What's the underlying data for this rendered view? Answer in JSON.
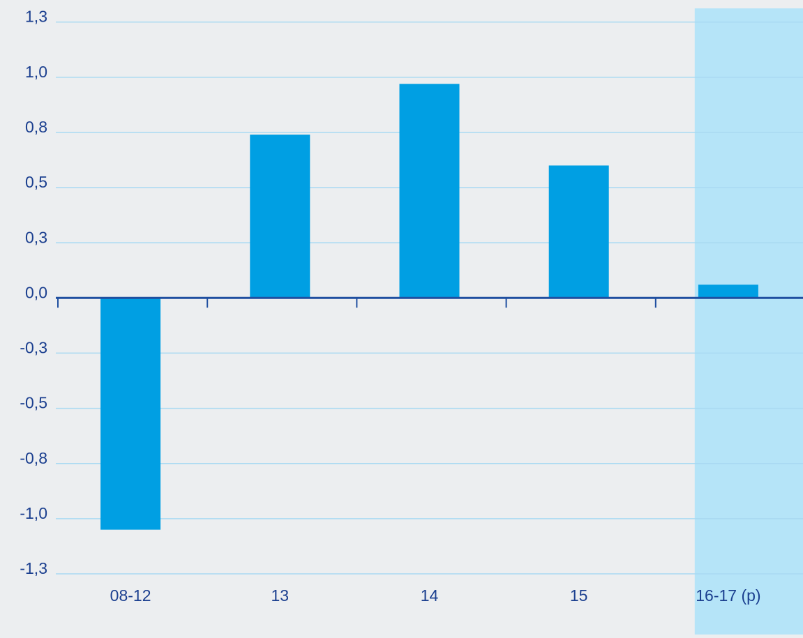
{
  "chart_data": {
    "type": "bar",
    "categories": [
      "08-12",
      "13",
      "14",
      "15",
      "16-17 (p)"
    ],
    "values": [
      -1.05,
      0.74,
      0.97,
      0.6,
      0.06
    ],
    "color": "#009fe3",
    "ylim": [
      -1.525,
      1.35
    ],
    "yticks": [
      {
        "value": 1.25,
        "label": "1,3"
      },
      {
        "value": 1.0,
        "label": "1,0"
      },
      {
        "value": 0.75,
        "label": "0,8"
      },
      {
        "value": 0.5,
        "label": "0,5"
      },
      {
        "value": 0.25,
        "label": "0,3"
      },
      {
        "value": 0,
        "label": "0,0"
      },
      {
        "value": -0.25,
        "label": "-0,3"
      },
      {
        "value": -0.5,
        "label": "-0,5"
      },
      {
        "value": -0.75,
        "label": "-0,8"
      },
      {
        "value": -1.0,
        "label": "-1,0"
      },
      {
        "value": -1.25,
        "label": "-1,3"
      }
    ],
    "grid": true,
    "highlight": {
      "category": "16-17 (p)",
      "color": "#b5e4f8"
    }
  }
}
